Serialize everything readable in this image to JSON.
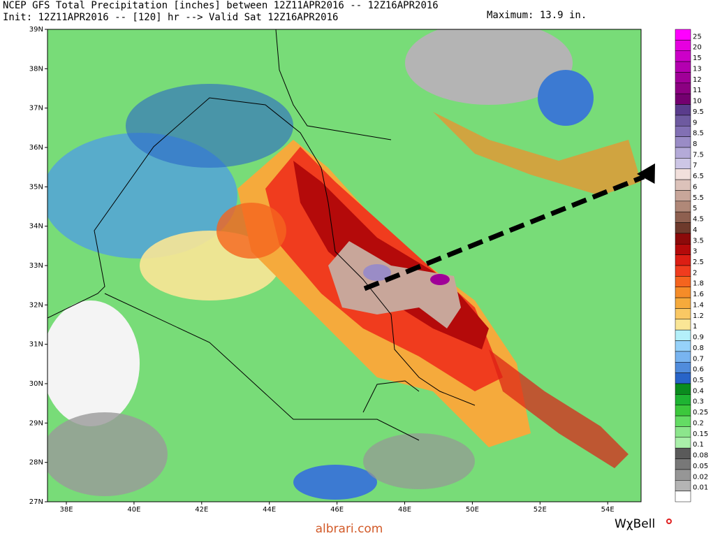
{
  "header": {
    "title": "NCEP GFS Total Precipitation [inches] between 12Z11APR2016 -- 12Z16APR2016",
    "init": "Init: 12Z11APR2016 -- [120] hr --> Valid Sat 12Z16APR2016",
    "maximum": "Maximum: 13.9 in."
  },
  "map": {
    "lat_labels": [
      "39N",
      "38N",
      "37N",
      "36N",
      "35N",
      "34N",
      "33N",
      "32N",
      "31N",
      "30N",
      "29N",
      "28N",
      "27N"
    ],
    "lon_labels": [
      "38E",
      "40E",
      "42E",
      "44E",
      "46E",
      "48E",
      "50E",
      "52E",
      "54E"
    ]
  },
  "colorbar": {
    "labels": [
      "25",
      "20",
      "15",
      "13",
      "12",
      "11",
      "10",
      "9.5",
      "9",
      "8.5",
      "8",
      "7.5",
      "7",
      "6.5",
      "6",
      "5.5",
      "5",
      "4.5",
      "4",
      "3.5",
      "3",
      "2.5",
      "2",
      "1.8",
      "1.6",
      "1.4",
      "1.2",
      "1",
      "0.9",
      "0.8",
      "0.7",
      "0.6",
      "0.5",
      "0.4",
      "0.3",
      "0.25",
      "0.2",
      "0.15",
      "0.1",
      "0.08",
      "0.05",
      "0.02",
      "0.01"
    ],
    "colors": [
      "#ff00ff",
      "#e600e0",
      "#cc00c8",
      "#b400b0",
      "#a00098",
      "#8c0082",
      "#740070",
      "#5a3c8c",
      "#6e5aa0",
      "#8270b4",
      "#9a8cc6",
      "#b4aad8",
      "#cdc6e6",
      "#f2e0dc",
      "#dcc2ba",
      "#c8a69a",
      "#b08878",
      "#8e6050",
      "#6e3a2c",
      "#8c0a0a",
      "#b40a0a",
      "#dc1e14",
      "#f03c1e",
      "#f5641e",
      "#f58c28",
      "#f5aa3c",
      "#fac864",
      "#fae696",
      "#b4f0fa",
      "#96d2fa",
      "#78b4f0",
      "#508cdc",
      "#2864c8",
      "#0a8c1e",
      "#1eb432",
      "#3cc83c",
      "#64dc64",
      "#8ce68c",
      "#aaf0aa",
      "#5a5a5a",
      "#787878",
      "#969696",
      "#b4b4b4",
      "#ffffff"
    ]
  },
  "footer": {
    "site": "albrari.com",
    "logo": "WχBell"
  }
}
